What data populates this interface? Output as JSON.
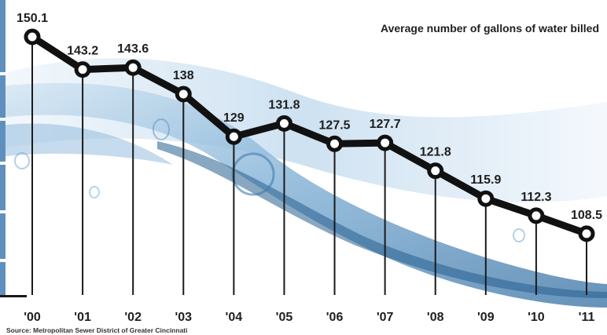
{
  "chart_data": {
    "type": "line",
    "title": "Average number of gallons of water billed",
    "categories": [
      "'00",
      "'01",
      "'02",
      "'03",
      "'04",
      "'05",
      "'06",
      "'07",
      "'08",
      "'09",
      "'10",
      "'11"
    ],
    "series": [
      {
        "values": [
          150.1,
          143.2,
          143.6,
          138,
          129,
          131.8,
          127.5,
          127.7,
          121.8,
          115.9,
          112.3,
          108.5
        ]
      }
    ],
    "value_labels": [
      "150.1",
      "143.2",
      "143.6",
      "138",
      "129",
      "131.8",
      "127.5",
      "127.7",
      "121.8",
      "115.9",
      "112.3",
      "108.5"
    ],
    "ylim": [
      100,
      155
    ],
    "grid": false,
    "legend": "none",
    "source": "Source: Metropolitan Sewer District of Greater Cincinnati",
    "colors": {
      "line": "#111111",
      "marker_fill": "#ffffff",
      "drop_lines": "#1a1a1a",
      "text": "#1f1f1f",
      "water": "#3d7fb5"
    }
  }
}
